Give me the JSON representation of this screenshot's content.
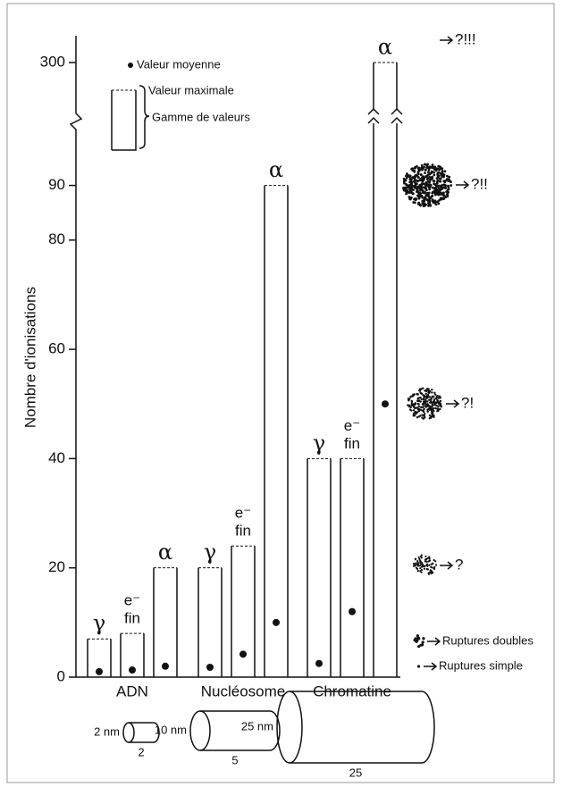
{
  "chart_data": {
    "type": "range-bar",
    "y_label": "Nombre d'ionisations",
    "categories": [
      "ADN",
      "Nucléosome",
      "Chromatine"
    ],
    "series": [
      {
        "name_lines": [
          "γ"
        ],
        "max": [
          7,
          20,
          40
        ],
        "mean": [
          1,
          1.8,
          2.5
        ]
      },
      {
        "name_lines": [
          "e⁻",
          "fin"
        ],
        "max": [
          8,
          24,
          40
        ],
        "mean": [
          1.3,
          4.2,
          12
        ]
      },
      {
        "name_lines": [
          "α"
        ],
        "max": [
          20,
          90,
          300
        ],
        "mean": [
          2,
          10,
          50
        ]
      }
    ],
    "ylim": [
      0,
      302
    ],
    "axis_break": [
      95,
      296
    ],
    "yticks": [
      0,
      20,
      40,
      60,
      80,
      90,
      300
    ],
    "legend": {
      "mean": "Valeur moyenne",
      "max": "Valeur maximale",
      "range": "Gamme de valeurs"
    },
    "annotations": [
      "?!!!",
      "?!!",
      "?!",
      "?",
      "Ruptures doubles",
      "Ruptures simple"
    ],
    "sizes": [
      {
        "diameter": "2 nm",
        "length": "2"
      },
      {
        "diameter": "10 nm",
        "length": "5"
      },
      {
        "diameter": "25 nm",
        "length": "25"
      }
    ]
  }
}
